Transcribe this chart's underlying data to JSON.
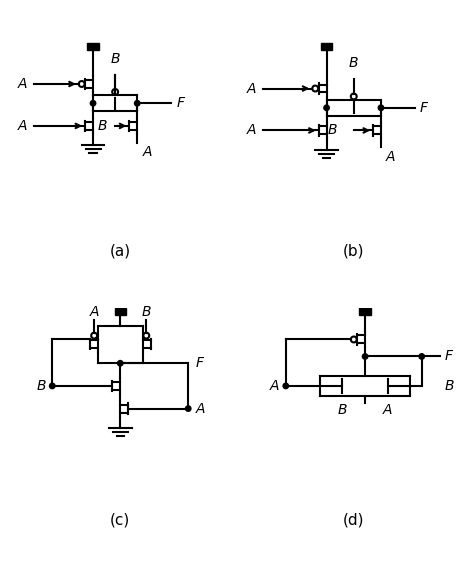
{
  "background": "#ffffff",
  "line_color": "#000000",
  "line_width": 1.5,
  "labels": {
    "a": "(a)",
    "b": "(b)",
    "c": "(c)",
    "d": "(d)"
  }
}
